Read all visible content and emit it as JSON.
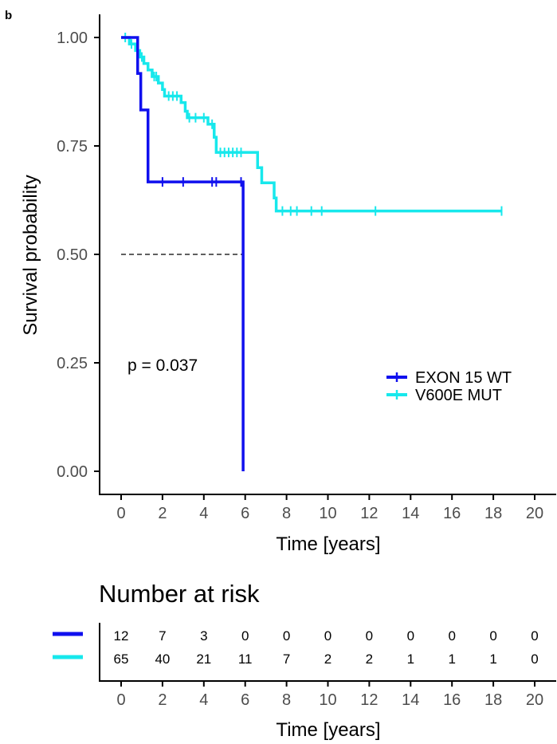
{
  "panel_label": "b",
  "chart_data": [
    {
      "type": "line",
      "subtype": "kaplan-meier",
      "xlabel": "Time [years]",
      "ylabel": "Survival probability",
      "xlim": [
        -1,
        20.5
      ],
      "ylim": [
        -0.05,
        1.05
      ],
      "xticks": [
        0,
        2,
        4,
        6,
        8,
        10,
        12,
        14,
        16,
        18,
        20
      ],
      "yticks": [
        0,
        0.25,
        0.5,
        0.75,
        1
      ],
      "yticklabels": [
        "0.00",
        "0.25",
        "0.50",
        "0.75",
        "1.00"
      ],
      "grid": false,
      "legend_position": "right",
      "annotation": "p = 0.037",
      "median_line": {
        "x_start": 0,
        "x_end": 5.9,
        "y": 0.5
      },
      "series": [
        {
          "name": "EXON 15 WT",
          "color": "#1010ee",
          "steps": [
            [
              0,
              1.0
            ],
            [
              0.8,
              0.917
            ],
            [
              0.95,
              0.833
            ],
            [
              1.3,
              0.667
            ],
            [
              5.9,
              0.0
            ]
          ],
          "end_time": 5.9,
          "censor_times": [
            2.0,
            3.0,
            4.4,
            4.6,
            5.8
          ]
        },
        {
          "name": "V600E MUT",
          "color": "#17e8ec",
          "steps": [
            [
              0,
              1.0
            ],
            [
              0.4,
              0.985
            ],
            [
              0.7,
              0.97
            ],
            [
              0.9,
              0.955
            ],
            [
              1.1,
              0.94
            ],
            [
              1.3,
              0.925
            ],
            [
              1.5,
              0.91
            ],
            [
              1.8,
              0.895
            ],
            [
              2.0,
              0.88
            ],
            [
              2.1,
              0.865
            ],
            [
              2.9,
              0.85
            ],
            [
              3.1,
              0.83
            ],
            [
              3.2,
              0.815
            ],
            [
              4.2,
              0.8
            ],
            [
              4.5,
              0.77
            ],
            [
              4.6,
              0.735
            ],
            [
              6.6,
              0.7
            ],
            [
              6.8,
              0.665
            ],
            [
              7.4,
              0.63
            ],
            [
              7.5,
              0.6
            ]
          ],
          "end_time": 18.4,
          "censor_times": [
            0.2,
            0.5,
            0.8,
            1.0,
            1.6,
            1.7,
            2.3,
            2.5,
            2.7,
            3.3,
            3.6,
            4.0,
            4.4,
            4.8,
            5.0,
            5.2,
            5.4,
            5.6,
            5.8,
            7.8,
            8.2,
            8.5,
            9.2,
            9.7,
            12.3,
            18.4
          ]
        }
      ]
    },
    {
      "type": "table",
      "title": "Number at risk",
      "xlabel": "Time [years]",
      "columns": [
        0,
        2,
        4,
        6,
        8,
        10,
        12,
        14,
        16,
        18,
        20
      ],
      "rows": [
        {
          "color": "#1010ee",
          "values": [
            "12",
            "7",
            "3",
            "0",
            "0",
            "0",
            "0",
            "0",
            "0",
            "0",
            "0"
          ]
        },
        {
          "color": "#17e8ec",
          "values": [
            "65",
            "40",
            "21",
            "11",
            "7",
            "2",
            "2",
            "1",
            "1",
            "1",
            "0"
          ]
        }
      ]
    }
  ]
}
